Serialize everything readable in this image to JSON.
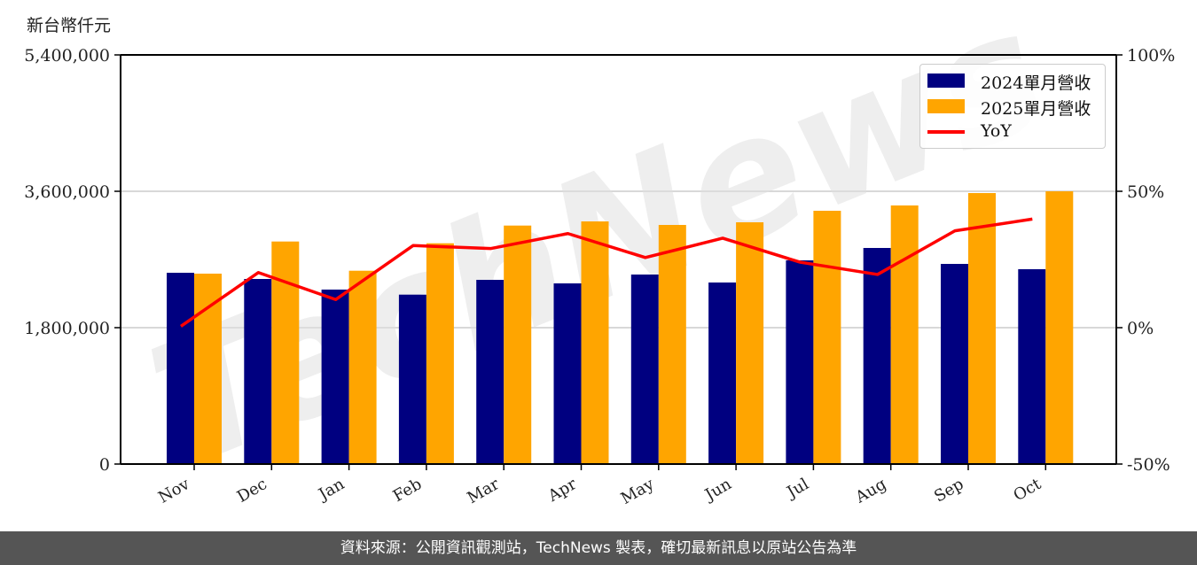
{
  "footer": {
    "source_text": "資料來源：公開資訊觀測站，TechNews 製表，確切最新訊息以原站公告為準"
  },
  "watermark": "TechNews",
  "chart_data": {
    "type": "bar",
    "title": "",
    "unit_label": "新台幣仟元",
    "xlabel": "",
    "ylabel": "新台幣仟元",
    "y2label": "YoY",
    "categories": [
      "Nov",
      "Dec",
      "Jan",
      "Feb",
      "Mar",
      "Apr",
      "May",
      "Jun",
      "Jul",
      "Aug",
      "Sep",
      "Oct"
    ],
    "series": [
      {
        "name": "2024單月營收",
        "type": "bar",
        "color": "#000080",
        "values": [
          2524600,
          2442800,
          2302500,
          2235900,
          2431100,
          2384400,
          2501200,
          2396000,
          2688200,
          2851900,
          2641500,
          2571400
        ]
      },
      {
        "name": "2025單月營收",
        "type": "bar",
        "color": "#FFA500",
        "values": [
          2513000,
          2937200,
          2551500,
          2913800,
          3147600,
          3202500,
          3155800,
          3190800,
          3342800,
          3412900,
          3576500,
          3599900
        ]
      },
      {
        "name": "YoY",
        "type": "line",
        "axis": "right",
        "color": "#FF0000",
        "values": [
          0.5,
          20.2,
          10.3,
          30.1,
          29.0,
          34.5,
          25.7,
          32.8,
          24.0,
          19.5,
          35.5,
          39.8
        ]
      }
    ],
    "ylim": [
      0,
      5400000
    ],
    "yticks": [
      0,
      1800000,
      3600000,
      5400000
    ],
    "ytick_labels": [
      "0",
      "1,800,000",
      "3,600,000",
      "5,400,000"
    ],
    "y2lim": [
      -50,
      100
    ],
    "y2ticks": [
      -50,
      0,
      50,
      100
    ],
    "y2tick_labels": [
      "-50%",
      "0%",
      "50%",
      "100%"
    ],
    "grid": "horizontal",
    "legend_position": "upper right",
    "legend": [
      "2024單月營收",
      "2025單月營收",
      "YoY"
    ]
  }
}
